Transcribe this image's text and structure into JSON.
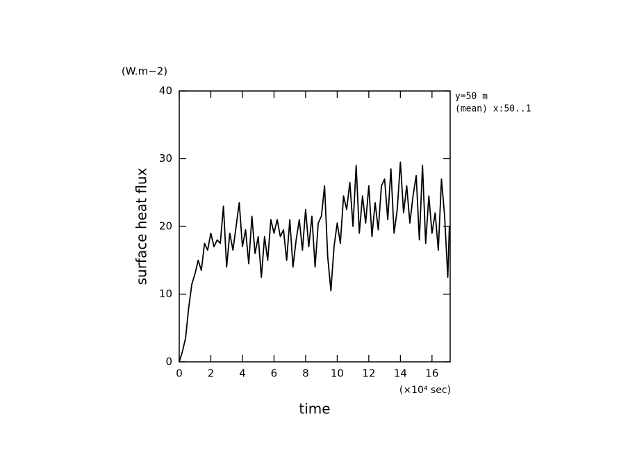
{
  "chart_data": {
    "type": "line",
    "y_unit": "(W.m−2)",
    "ylabel": "surface heat flux",
    "xlabel": "time",
    "x_unit": "(×10⁴ sec)",
    "annotations": [
      "y=50 m",
      "(mean) x:50..1"
    ],
    "x": [
      0,
      0.2,
      0.4,
      0.6,
      0.8,
      1.0,
      1.2,
      1.4,
      1.6,
      1.8,
      2.0,
      2.2,
      2.4,
      2.6,
      2.8,
      3.0,
      3.2,
      3.4,
      3.6,
      3.8,
      4.0,
      4.2,
      4.4,
      4.6,
      4.8,
      5.0,
      5.2,
      5.4,
      5.6,
      5.8,
      6.0,
      6.2,
      6.4,
      6.6,
      6.8,
      7.0,
      7.2,
      7.4,
      7.6,
      7.8,
      8.0,
      8.2,
      8.4,
      8.6,
      8.8,
      9.0,
      9.2,
      9.4,
      9.6,
      9.8,
      10.0,
      10.2,
      10.4,
      10.6,
      10.8,
      11.0,
      11.2,
      11.4,
      11.6,
      11.8,
      12.0,
      12.2,
      12.4,
      12.6,
      12.8,
      13.0,
      13.2,
      13.4,
      13.6,
      13.8,
      14.0,
      14.2,
      14.4,
      14.6,
      14.8,
      15.0,
      15.2,
      15.4,
      15.6,
      15.8,
      16.0,
      16.2,
      16.4,
      16.6,
      16.8,
      17.0,
      17.1
    ],
    "series": [
      {
        "color": "#000000",
        "values": [
          0,
          1.5,
          3.5,
          8,
          11.5,
          13,
          15,
          13.5,
          17.5,
          16.5,
          19,
          17,
          18,
          17.5,
          23,
          14,
          19,
          16.5,
          20,
          23.5,
          17,
          19.5,
          14.5,
          21.5,
          16,
          18.5,
          12.5,
          18.5,
          15,
          21,
          19,
          21,
          18.5,
          19.5,
          15,
          21,
          14,
          18,
          21,
          16.5,
          22.5,
          17,
          21.5,
          14,
          20.5,
          21.5,
          26,
          15.5,
          10.5,
          17,
          20.5,
          17.5,
          24.5,
          22.5,
          26.5,
          20,
          29,
          19,
          24.5,
          20.5,
          26,
          18.5,
          23.5,
          19.5,
          26,
          27,
          21,
          28.5,
          19,
          22.5,
          29.5,
          22,
          26,
          20.5,
          24.5,
          27.5,
          18,
          29,
          17.5,
          24.5,
          19,
          22,
          16.5,
          27,
          21.5,
          12.5,
          20
        ]
      }
    ],
    "xlim": [
      0,
      17.15
    ],
    "ylim": [
      0,
      40
    ],
    "xticks": [
      0,
      2,
      4,
      6,
      8,
      10,
      12,
      14,
      16
    ],
    "yticks": [
      0,
      10,
      20,
      30,
      40
    ]
  }
}
